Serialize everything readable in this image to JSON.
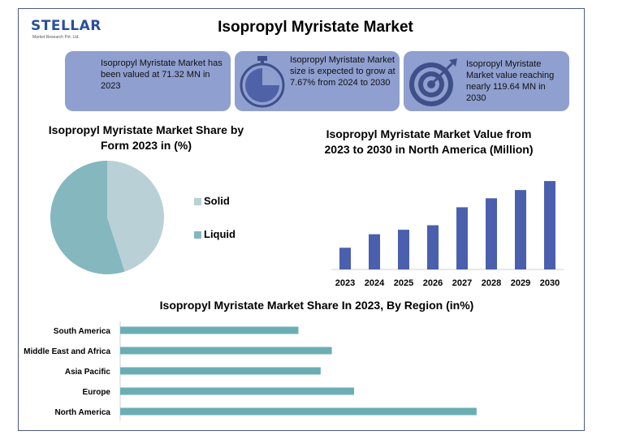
{
  "logo": {
    "brand": "STELLAR",
    "tagline": "Market Research Pvt. Ltd."
  },
  "title": "Isopropyl Myristate Market",
  "cards": [
    {
      "text": "Isopropyl Myristate Market has been valued at 71.32 MN in 2023",
      "icon": "none"
    },
    {
      "text": "Isopropyl Myristate Market size is expected to grow at 7.67% from 2024 to 2030",
      "icon": "stopwatch-icon"
    },
    {
      "text": "Isopropyl Myristate Market value reaching nearly 119.64 MN in 2030",
      "icon": "target-icon"
    }
  ],
  "colors": {
    "card": "#8f9fcf",
    "bar": "#4a5fad",
    "hbar": "#6aaeb4",
    "solid": "#b9d1d6",
    "liquid": "#85b7bf",
    "frame": "#4a5a8c"
  },
  "chart_data": [
    {
      "type": "pie",
      "title": "Isopropyl Myristate Market Share by Form 2023 in (%)",
      "categories": [
        "Solid",
        "Liquid"
      ],
      "values": [
        45,
        55
      ],
      "legend": "right"
    },
    {
      "type": "bar",
      "title": "Isopropyl Myristate Market Value from 2023 to 2030 in North America (Million)",
      "categories": [
        "2023",
        "2024",
        "2025",
        "2026",
        "2027",
        "2028",
        "2029",
        "2030"
      ],
      "values": [
        29,
        47,
        53,
        59,
        83,
        95,
        106,
        118
      ],
      "ylim": [
        0,
        130
      ],
      "grid": false
    },
    {
      "type": "bar",
      "orientation": "horizontal",
      "title": "Isopropyl Myristate Market Share In 2023, By Region (in%)",
      "categories": [
        "South America",
        "Middle East and Africa",
        "Asia Pacific",
        "Europe",
        "North America"
      ],
      "values": [
        16,
        19,
        18,
        21,
        32
      ],
      "xlim": [
        0,
        35
      ],
      "grid": false
    }
  ]
}
